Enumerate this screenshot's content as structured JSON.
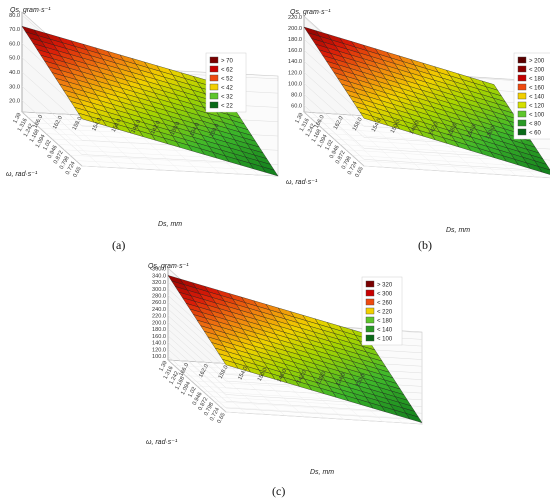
{
  "chart_data": [
    {
      "type": "surface",
      "panel_label": "(a)",
      "zlabel": "Qs, gram·s⁻¹",
      "xlabel": "Ds, mm",
      "ylabel": "ω, rad·s⁻¹",
      "z_ticks": [
        "20.0",
        "30.0",
        "40.0",
        "50.0",
        "60.0",
        "70.0",
        "80.0"
      ],
      "zlim": [
        12,
        82
      ],
      "x_ticks": [
        "170.0",
        "166.0",
        "162.0",
        "158.0",
        "154.0",
        "150.0",
        "146.0",
        "142.0",
        "138.0",
        "134.0",
        "130.0"
      ],
      "y_ticks": [
        "0.65",
        "0.724",
        "0.798",
        "0.872",
        "0.946",
        "1.02",
        "1.094",
        "1.168",
        "1.242",
        "1.316",
        "1.39"
      ],
      "xlim": [
        130,
        170
      ],
      "ylim": [
        0.65,
        1.39
      ],
      "surface_z_range": [
        12,
        72
      ],
      "legend": [
        {
          "label": "> 70",
          "color": "#7a0000"
        },
        {
          "label": "< 62",
          "color": "#c80000"
        },
        {
          "label": "< 52",
          "color": "#ee4a10"
        },
        {
          "label": "< 42",
          "color": "#f2d000"
        },
        {
          "label": "< 32",
          "color": "#5ec62c"
        },
        {
          "label": "< 22",
          "color": "#0a6a18"
        }
      ]
    },
    {
      "type": "surface",
      "panel_label": "(b)",
      "zlabel": "Qs, gram·s⁻¹",
      "xlabel": "Ds, mm",
      "ylabel": "ω, rad·s⁻¹",
      "z_ticks": [
        "60.0",
        "80.0",
        "100.0",
        "120.0",
        "140.0",
        "160.0",
        "180.0",
        "200.0",
        "220.0"
      ],
      "zlim": [
        48,
        222
      ],
      "x_ticks": [
        "170.0",
        "166.0",
        "162.0",
        "158.0",
        "154.0",
        "150.0",
        "146.0",
        "142.0",
        "138.0",
        "134.0",
        "130.0"
      ],
      "y_ticks": [
        "0.65",
        "0.724",
        "0.798",
        "0.872",
        "0.946",
        "1.02",
        "1.094",
        "1.168",
        "1.242",
        "1.316",
        "1.39"
      ],
      "xlim": [
        130,
        170
      ],
      "ylim": [
        0.65,
        1.39
      ],
      "surface_z_range": [
        52,
        202
      ],
      "legend": [
        {
          "label": "> 200",
          "color": "#5a0000"
        },
        {
          "label": "< 200",
          "color": "#8a0000"
        },
        {
          "label": "< 180",
          "color": "#c40000"
        },
        {
          "label": "< 160",
          "color": "#ee4a10"
        },
        {
          "label": "< 140",
          "color": "#f2d000"
        },
        {
          "label": "< 120",
          "color": "#d4e000"
        },
        {
          "label": "< 100",
          "color": "#5ec62c"
        },
        {
          "label": "< 80",
          "color": "#2a9a26"
        },
        {
          "label": "< 60",
          "color": "#0a6a18"
        }
      ]
    },
    {
      "type": "surface",
      "panel_label": "(c)",
      "zlabel": "Qs, gram·s⁻¹",
      "xlabel": "Ds, mm",
      "ylabel": "ω, rad·s⁻¹",
      "z_ticks": [
        "100.0",
        "120.0",
        "140.0",
        "160.0",
        "180.0",
        "200.0",
        "220.0",
        "240.0",
        "260.0",
        "280.0",
        "300.0",
        "320.0",
        "340.0",
        "360.0"
      ],
      "zlim": [
        88,
        362
      ],
      "x_ticks": [
        "170.0",
        "166.0",
        "162.0",
        "158.0",
        "154.0",
        "150.0",
        "146.0",
        "142.0",
        "138.0",
        "134.0",
        "130.0"
      ],
      "y_ticks": [
        "0.65",
        "0.724",
        "0.798",
        "0.872",
        "0.946",
        "1.02",
        "1.094",
        "1.168",
        "1.242",
        "1.316",
        "1.39"
      ],
      "xlim": [
        130,
        170
      ],
      "ylim": [
        0.65,
        1.39
      ],
      "surface_z_range": [
        92,
        340
      ],
      "legend": [
        {
          "label": "> 320",
          "color": "#7a0000"
        },
        {
          "label": "< 300",
          "color": "#c80000"
        },
        {
          "label": "< 260",
          "color": "#ee4a10"
        },
        {
          "label": "< 220",
          "color": "#f2d000"
        },
        {
          "label": "< 180",
          "color": "#5ec62c"
        },
        {
          "label": "< 140",
          "color": "#2a9a26"
        },
        {
          "label": "< 100",
          "color": "#0a6a18"
        }
      ]
    }
  ]
}
